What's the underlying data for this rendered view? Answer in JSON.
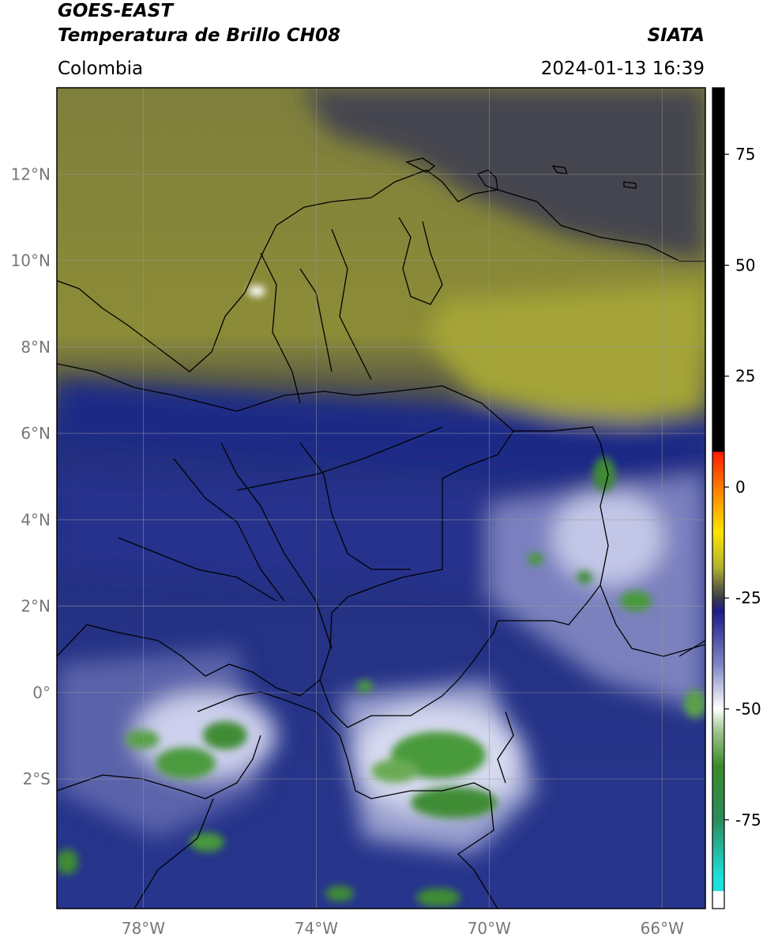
{
  "header": {
    "satellite": "GOES-EAST",
    "product": "Temperatura de Brillo CH08",
    "agency": "SIATA",
    "region": "Colombia",
    "timestamp": "2024-01-13 16:39"
  },
  "map": {
    "lon_range": [
      -80,
      -65
    ],
    "lat_range": [
      -5,
      14
    ],
    "lat_ticks": [
      {
        "value": 12,
        "label": "12°N"
      },
      {
        "value": 10,
        "label": "10°N"
      },
      {
        "value": 8,
        "label": "8°N"
      },
      {
        "value": 6,
        "label": "6°N"
      },
      {
        "value": 4,
        "label": "4°N"
      },
      {
        "value": 2,
        "label": "2°N"
      },
      {
        "value": 0,
        "label": "0°"
      },
      {
        "value": -2,
        "label": "2°S"
      }
    ],
    "lon_ticks": [
      {
        "value": -78,
        "label": "78°W"
      },
      {
        "value": -74,
        "label": "74°W"
      },
      {
        "value": -70,
        "label": "70°W"
      },
      {
        "value": -66,
        "label": "66°W"
      }
    ],
    "grid": true
  },
  "colorbar": {
    "range": [
      -95,
      90
    ],
    "ticks": [
      {
        "value": 75,
        "label": "75"
      },
      {
        "value": 50,
        "label": "50"
      },
      {
        "value": 25,
        "label": "25"
      },
      {
        "value": 0,
        "label": "0"
      },
      {
        "value": -25,
        "label": "-25"
      },
      {
        "value": -50,
        "label": "-50"
      },
      {
        "value": -75,
        "label": "-75"
      }
    ],
    "stops": [
      {
        "value": 90,
        "color": "#000000"
      },
      {
        "value": 8,
        "color": "#000000"
      },
      {
        "value": 7.9,
        "color": "#ff1a00"
      },
      {
        "value": 0,
        "color": "#ff7a00"
      },
      {
        "value": -10,
        "color": "#ffe400"
      },
      {
        "value": -18,
        "color": "#b3b32e"
      },
      {
        "value": -22,
        "color": "#6b6b3d"
      },
      {
        "value": -25,
        "color": "#3b3b4a"
      },
      {
        "value": -28,
        "color": "#1c1c8a"
      },
      {
        "value": -40,
        "color": "#7f86c4"
      },
      {
        "value": -50,
        "color": "#ffffff"
      },
      {
        "value": -55,
        "color": "#9fc58e"
      },
      {
        "value": -63,
        "color": "#3a8a2a"
      },
      {
        "value": -75,
        "color": "#2a8c5c"
      },
      {
        "value": -88,
        "color": "#1ee0dc"
      },
      {
        "value": -91,
        "color": "#1ee0dc"
      },
      {
        "value": -91.1,
        "color": "#ffffff"
      },
      {
        "value": -95,
        "color": "#ffffff"
      }
    ]
  },
  "colors": {
    "cloud_free_north": "#8a8a3a",
    "cloud_free_dark": "#45454f",
    "mid_level": "#1f2a86",
    "cold_cloud": "#c9cbe8",
    "deep_convection": "#3f8c34",
    "borders": "#000000",
    "grid": "#9a9a9a"
  }
}
